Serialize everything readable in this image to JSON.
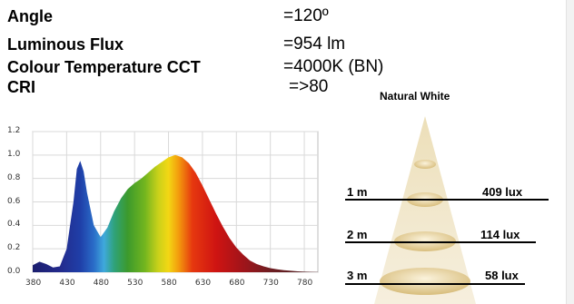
{
  "specs": [
    {
      "label": "Angle",
      "value": "=120º"
    },
    {
      "label": "Luminous Flux",
      "value": "=954 lm"
    },
    {
      "label": "Colour Temperature CCT",
      "value": "=4000K  (BN)"
    },
    {
      "label": "CRI",
      "value": "=>80"
    }
  ],
  "beam": {
    "title": "Natural White",
    "rows": [
      {
        "distance": "1 m",
        "lux": "409 lux"
      },
      {
        "distance": "2 m",
        "lux": "114 lux"
      },
      {
        "distance": "3 m",
        "lux": "58 lux"
      }
    ],
    "colors": {
      "cone": "#e6d39f",
      "rim": "#c9a862"
    }
  },
  "chart_data": {
    "type": "area",
    "title": "",
    "xlabel": "",
    "ylabel": "",
    "xlim": [
      380,
      800
    ],
    "ylim": [
      0,
      1.2
    ],
    "grid": true,
    "xticks": [
      "380",
      "430",
      "480",
      "530",
      "580",
      "630",
      "680",
      "730",
      "780"
    ],
    "yticks": [
      "0.0",
      "0.2",
      "0.4",
      "0.6",
      "0.8",
      "1.0",
      "1.2"
    ],
    "x": [
      380,
      390,
      400,
      410,
      420,
      430,
      440,
      445,
      450,
      455,
      460,
      470,
      480,
      490,
      500,
      510,
      520,
      530,
      540,
      550,
      560,
      570,
      580,
      590,
      600,
      610,
      620,
      630,
      640,
      650,
      660,
      670,
      680,
      690,
      700,
      710,
      720,
      730,
      740,
      750,
      760,
      770,
      780,
      790,
      800
    ],
    "series": [
      {
        "values": [
          0.06,
          0.09,
          0.07,
          0.04,
          0.05,
          0.2,
          0.6,
          0.88,
          0.95,
          0.86,
          0.68,
          0.4,
          0.3,
          0.38,
          0.52,
          0.63,
          0.71,
          0.76,
          0.8,
          0.85,
          0.9,
          0.94,
          0.98,
          1.0,
          0.98,
          0.93,
          0.85,
          0.74,
          0.62,
          0.5,
          0.39,
          0.29,
          0.21,
          0.15,
          0.1,
          0.07,
          0.05,
          0.035,
          0.025,
          0.018,
          0.012,
          0.008,
          0.005,
          0.003,
          0.002
        ]
      }
    ]
  }
}
